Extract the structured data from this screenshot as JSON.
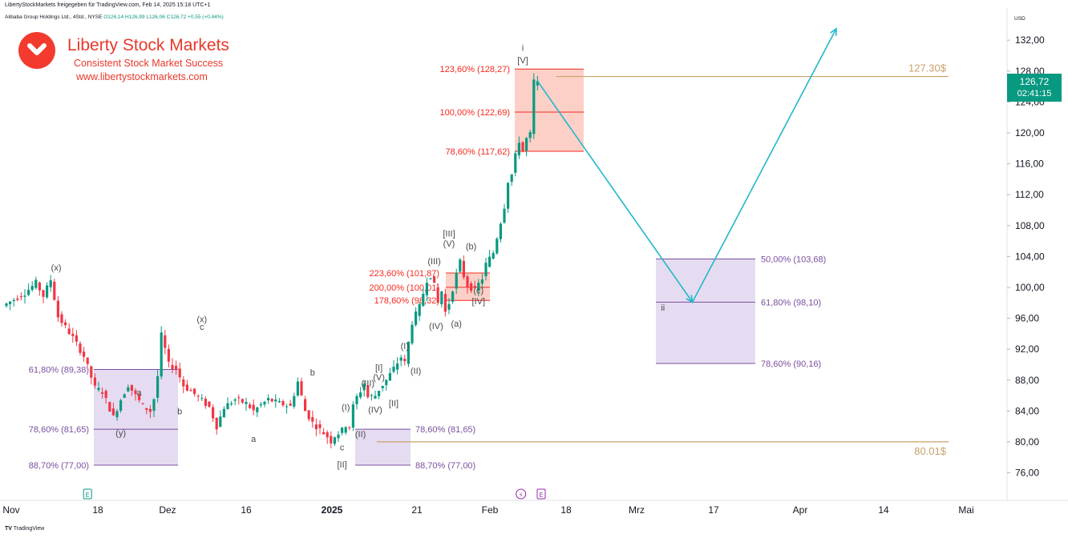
{
  "header": {
    "share_line": "LibertyStockMarkets freigegeben für TradingView.com, Feb 14, 2025 15:18 UTC+1",
    "symbol": "Alibaba Group Holdings Ltd., 4Std., NYSE",
    "ohlc": "O126,14 H126,99 L126,06 C126,72 +0,55 (+0,44%)"
  },
  "brand": {
    "title": "Liberty Stock Markets",
    "subtitle": "Consistent Stock Market Success",
    "url": "www.libertystockmarkets.com"
  },
  "price_scale": {
    "currency": "USD",
    "last_price": "126,72",
    "countdown": "02:41:15"
  },
  "footer": {
    "logo_text": "TradingView"
  },
  "colors": {
    "up": "#089981",
    "down": "#f23645",
    "wave_label": "#4a4a4a",
    "red_text": "#f7291f",
    "purple_text": "#7b4fa0",
    "target_line": "#c8a26a",
    "projection": "#1fb8cc",
    "brand": "#e8382b"
  },
  "chart_data": {
    "type": "candlestick",
    "title": "Alibaba Group Holdings Ltd., 4Std., NYSE",
    "x_axis": {
      "ticks": [
        "Nov",
        "18",
        "Dez",
        "16",
        "2025",
        "21",
        "Feb",
        "18",
        "Mrz",
        "17",
        "Apr",
        "14",
        "Mai"
      ]
    },
    "y_axis": {
      "range": [
        72,
        135
      ],
      "ticks": [
        "76,00",
        "80,00",
        "84,00",
        "88,00",
        "92,00",
        "96,00",
        "100,00",
        "104,00",
        "108,00",
        "112,00",
        "116,00",
        "120,00",
        "124,00",
        "128,00",
        "132,00"
      ]
    },
    "price_path": [
      [
        0,
        97.6
      ],
      [
        6,
        99.3
      ],
      [
        9,
        100.6
      ],
      [
        11,
        98.9
      ],
      [
        13,
        101.0
      ],
      [
        15,
        96.2
      ],
      [
        19,
        93.5
      ],
      [
        22,
        91.1
      ],
      [
        25,
        87.0
      ],
      [
        27,
        86.5
      ],
      [
        30,
        83.2
      ],
      [
        32,
        85.5
      ],
      [
        34,
        87.4
      ],
      [
        36,
        86.0
      ],
      [
        38,
        84.6
      ],
      [
        40,
        84.0
      ],
      [
        41,
        85.6
      ],
      [
        42,
        88.5
      ],
      [
        43,
        93.8
      ],
      [
        44,
        92.0
      ],
      [
        45,
        90.0
      ],
      [
        47,
        89.5
      ],
      [
        49,
        87.3
      ],
      [
        52,
        86.2
      ],
      [
        56,
        84.5
      ],
      [
        58,
        82.0
      ],
      [
        60,
        84.5
      ],
      [
        63,
        85.5
      ],
      [
        66,
        85.0
      ],
      [
        68,
        84.0
      ],
      [
        70,
        84.8
      ],
      [
        72,
        85.5
      ],
      [
        75,
        85.0
      ],
      [
        78,
        84.6
      ],
      [
        80,
        87.8
      ],
      [
        82,
        84.0
      ],
      [
        84,
        82.5
      ],
      [
        86,
        81.6
      ],
      [
        88,
        80.7
      ],
      [
        89,
        80.1
      ],
      [
        90,
        80.8
      ],
      [
        92,
        81.5
      ],
      [
        93,
        82.2
      ],
      [
        94,
        82.0
      ],
      [
        95,
        84.6
      ],
      [
        96,
        85.8
      ],
      [
        97,
        86.6
      ],
      [
        98,
        87.6
      ],
      [
        99,
        85.8
      ],
      [
        101,
        86.0
      ],
      [
        102,
        86.8
      ],
      [
        104,
        88.0
      ],
      [
        106,
        89.5
      ],
      [
        108,
        91.0
      ],
      [
        109,
        90.2
      ],
      [
        111,
        95.5
      ],
      [
        113,
        97.5
      ],
      [
        115,
        101.0
      ],
      [
        116,
        101.6
      ],
      [
        117,
        100.2
      ],
      [
        118,
        98.0
      ],
      [
        119,
        99.5
      ],
      [
        120,
        96.8
      ],
      [
        121,
        98.0
      ],
      [
        123,
        101.7
      ],
      [
        124,
        103.3
      ],
      [
        125,
        101.5
      ],
      [
        126,
        100.2
      ],
      [
        128,
        99.7
      ],
      [
        130,
        101.2
      ],
      [
        131,
        103.0
      ],
      [
        133,
        104.5
      ],
      [
        135,
        108.5
      ],
      [
        136,
        110.5
      ],
      [
        137,
        113.8
      ],
      [
        138,
        114.6
      ],
      [
        139,
        117.0
      ],
      [
        140,
        119.0
      ],
      [
        141,
        117.6
      ],
      [
        142,
        119.2
      ],
      [
        143,
        119.8
      ],
      [
        144,
        126.7
      ]
    ],
    "fib_zones": [
      {
        "name": "zone-nov",
        "color": "purple",
        "levels": [
          {
            "label": "61,80% (89,38)",
            "value": 89.38
          },
          {
            "label": "78,60% (81,65)",
            "value": 81.65
          },
          {
            "label": "88,70% (77,00)",
            "value": 77.0
          }
        ]
      },
      {
        "name": "zone-jan",
        "color": "purple",
        "levels": [
          {
            "label": "78,60% (81,65)",
            "value": 81.65
          },
          {
            "label": "88,70% (77,00)",
            "value": 77.0
          }
        ]
      },
      {
        "name": "zone-jan-top",
        "color": "red",
        "levels": [
          {
            "label": "223,60% (101,87)",
            "value": 101.87
          },
          {
            "label": "200,00% (100,01)",
            "value": 100.01
          },
          {
            "label": "178,60% (98,32)",
            "value": 98.32
          }
        ]
      },
      {
        "name": "zone-feb-top",
        "color": "red",
        "levels": [
          {
            "label": "123,60% (128,27)",
            "value": 128.27
          },
          {
            "label": "100,00% (122,69)",
            "value": 122.69
          },
          {
            "label": "78,60% (117,62)",
            "value": 117.62
          }
        ]
      },
      {
        "name": "zone-target",
        "color": "purple",
        "levels": [
          {
            "label": "50,00% (103,68)",
            "value": 103.68
          },
          {
            "label": "61,80% (98,10)",
            "value": 98.1
          },
          {
            "label": "78,60% (90,16)",
            "value": 90.16
          }
        ]
      }
    ],
    "horizontal_lines": [
      {
        "label": "127.30$",
        "value": 127.3
      },
      {
        "label": "80.01$",
        "value": 80.01
      }
    ],
    "projection": [
      [
        144,
        126.7
      ],
      [
        186,
        98.1
      ],
      [
        225,
        133.5
      ]
    ],
    "wave_labels": [
      {
        "text": "(x)",
        "x": 13.5,
        "price": 102.2
      },
      {
        "text": "a",
        "x": 36,
        "price": 86.0
      },
      {
        "text": "(y)",
        "x": 31,
        "price": 80.8
      },
      {
        "text": "b",
        "x": 47,
        "price": 83.6
      },
      {
        "text": "(x)",
        "x": 53,
        "price": 95.5
      },
      {
        "text": "c",
        "x": 53,
        "price": 94.5
      },
      {
        "text": "a",
        "x": 67,
        "price": 80.0
      },
      {
        "text": "b",
        "x": 83,
        "price": 88.6
      },
      {
        "text": "(I)",
        "x": 92,
        "price": 84.1
      },
      {
        "text": "(II)",
        "x": 96,
        "price": 80.6
      },
      {
        "text": "c",
        "x": 91,
        "price": 78.9
      },
      {
        "text": "[II]",
        "x": 91,
        "price": 76.7
      },
      {
        "text": "(III)",
        "x": 98,
        "price": 87.2
      },
      {
        "text": "[I]",
        "x": 101,
        "price": 89.2
      },
      {
        "text": "(V)",
        "x": 101,
        "price": 88.0
      },
      {
        "text": "(IV)",
        "x": 100,
        "price": 83.8
      },
      {
        "text": "[II]",
        "x": 105,
        "price": 84.6
      },
      {
        "text": "(I)",
        "x": 108,
        "price": 92.0
      },
      {
        "text": "(II)",
        "x": 111,
        "price": 88.8
      },
      {
        "text": "(III)",
        "x": 116,
        "price": 103.0
      },
      {
        "text": "[III]",
        "x": 120,
        "price": 106.6
      },
      {
        "text": "(V)",
        "x": 120,
        "price": 105.3
      },
      {
        "text": "(IV)",
        "x": 116.5,
        "price": 94.6
      },
      {
        "text": "(a)",
        "x": 122,
        "price": 94.9
      },
      {
        "text": "(b)",
        "x": 126,
        "price": 104.9
      },
      {
        "text": "(c)",
        "x": 128,
        "price": 99.2
      },
      {
        "text": "[IV]",
        "x": 128,
        "price": 97.8
      },
      {
        "text": "i",
        "x": 140,
        "price": 130.6
      },
      {
        "text": "[V]",
        "x": 140,
        "price": 129.0
      },
      {
        "text": "ii",
        "x": 178,
        "price": 97.0
      }
    ],
    "event_markers": [
      {
        "text": "E",
        "x": 22
      },
      {
        "text": "⚡",
        "x": 139.5
      },
      {
        "text": "E",
        "x": 145
      }
    ]
  }
}
